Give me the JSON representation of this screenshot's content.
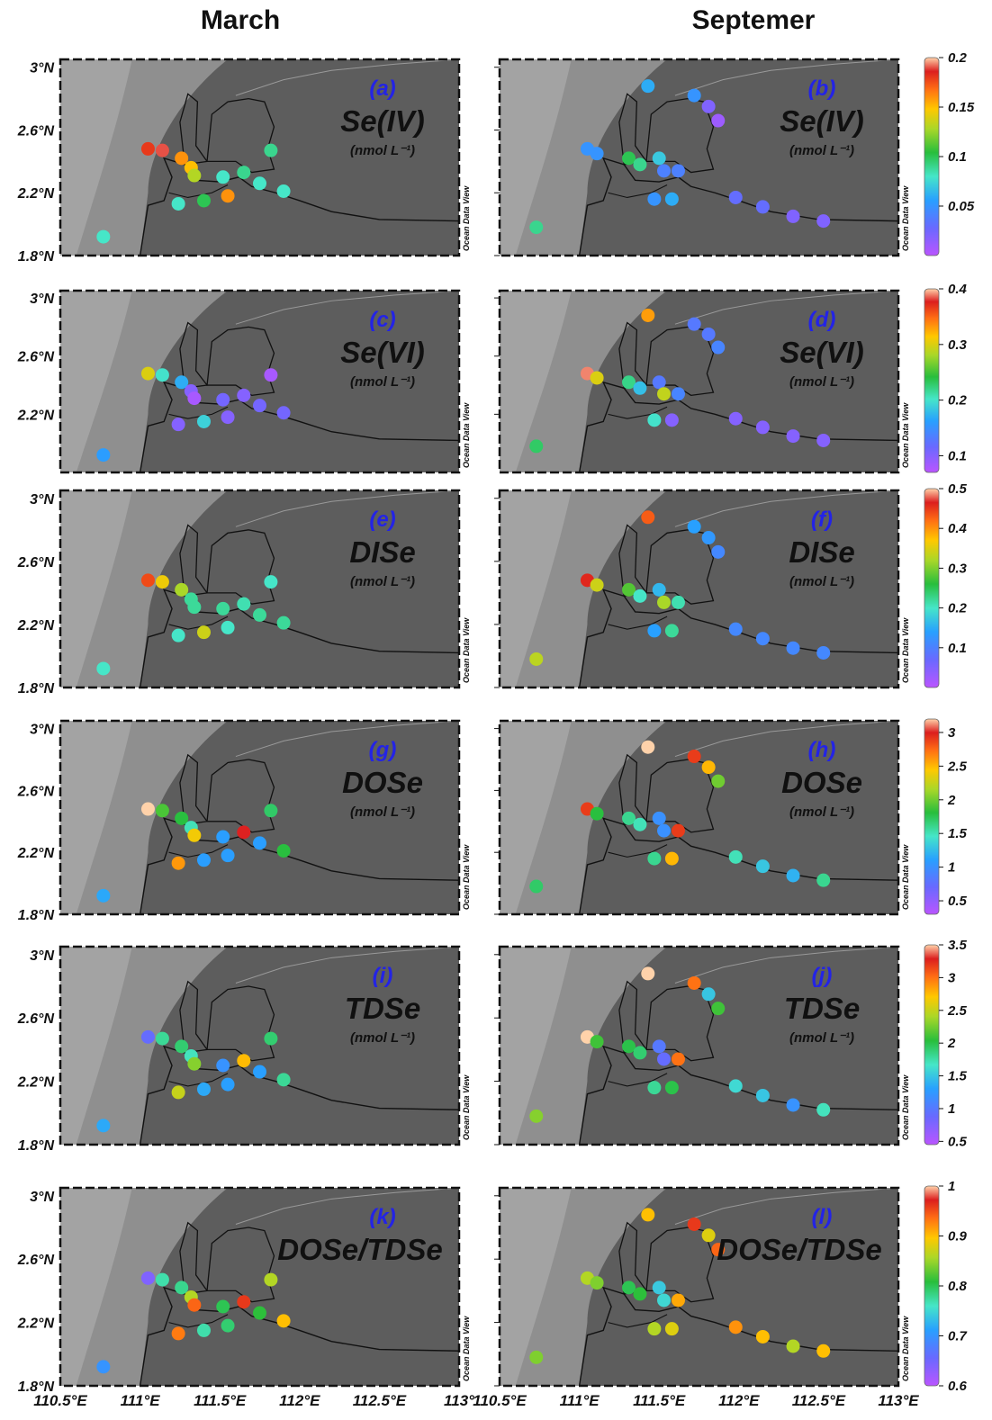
{
  "columns": {
    "left": "March",
    "right": "Septemer"
  },
  "watermark": "Ocean Data View",
  "latitude_ticks": [
    "3°N",
    "2.6°N",
    "2.2°N",
    "1.8°N"
  ],
  "longitude_ticks_left": [
    "110.5°E",
    "111°E",
    "111.5°E",
    "112°E",
    "112.5°E",
    "113°"
  ],
  "longitude_ticks_right": [
    "110.5°E",
    "111°E",
    "111.5°E",
    "112°E",
    "112.5°E",
    "113°E"
  ],
  "colors": {
    "land": "#5d5d5d",
    "shelf": "#8f8f8f",
    "letter": "#2323e6"
  },
  "stations": {
    "march": [
      [
        110.77,
        1.92
      ],
      [
        111.05,
        2.48
      ],
      [
        111.14,
        2.47
      ],
      [
        111.26,
        2.42
      ],
      [
        111.32,
        2.36
      ],
      [
        111.34,
        2.31
      ],
      [
        111.24,
        2.13
      ],
      [
        111.4,
        2.15
      ],
      [
        111.55,
        2.18
      ],
      [
        111.52,
        2.3
      ],
      [
        111.65,
        2.33
      ],
      [
        111.75,
        2.26
      ],
      [
        111.82,
        2.47
      ],
      [
        111.9,
        2.21
      ]
    ],
    "september": [
      [
        110.73,
        1.98
      ],
      [
        111.05,
        2.48
      ],
      [
        111.11,
        2.45
      ],
      [
        111.31,
        2.42
      ],
      [
        111.38,
        2.38
      ],
      [
        111.5,
        2.42
      ],
      [
        111.53,
        2.34
      ],
      [
        111.62,
        2.34
      ],
      [
        111.47,
        2.16
      ],
      [
        111.58,
        2.16
      ],
      [
        111.43,
        2.88
      ],
      [
        111.72,
        2.82
      ],
      [
        111.81,
        2.75
      ],
      [
        111.87,
        2.66
      ],
      [
        111.98,
        2.17
      ],
      [
        112.15,
        2.11
      ],
      [
        112.34,
        2.05
      ],
      [
        112.53,
        2.02
      ]
    ]
  },
  "panels": [
    {
      "letter": "(a)",
      "variable": "Se(IV)",
      "unit": "(nmol L⁻¹)",
      "colorbar": {
        "min": 0.0,
        "max": 0.2,
        "ticks": [
          "0.2",
          "0.15",
          "0.1",
          "0.05"
        ],
        "tick_values": [
          0.2,
          0.15,
          0.1,
          0.05
        ]
      },
      "values": [
        0.08,
        0.18,
        0.19,
        0.16,
        0.15,
        0.13,
        0.08,
        0.1,
        0.16,
        0.08,
        0.09,
        0.08,
        0.09,
        0.08
      ]
    },
    {
      "letter": "(b)",
      "variable": "Se(IV)",
      "unit": "(nmol L⁻¹)",
      "values": [
        0.09,
        0.05,
        0.05,
        0.1,
        0.09,
        0.07,
        0.04,
        0.04,
        0.05,
        0.06,
        0.06,
        0.05,
        0.02,
        0.01,
        0.03,
        0.03,
        0.02,
        0.02
      ]
    },
    {
      "letter": "(c)",
      "variable": "Se(VI)",
      "unit": "(nmol L⁻¹)",
      "colorbar": {
        "min": 0.07,
        "max": 0.4,
        "ticks": [
          "0.4",
          "0.3",
          "0.2",
          "0.1"
        ],
        "tick_values": [
          0.4,
          0.3,
          0.2,
          0.1
        ]
      },
      "values": [
        0.16,
        0.3,
        0.2,
        0.17,
        0.1,
        0.08,
        0.1,
        0.19,
        0.1,
        0.11,
        0.1,
        0.11,
        0.08,
        0.11
      ]
    },
    {
      "letter": "(d)",
      "variable": "Se(VI)",
      "unit": "(nmol L⁻¹)",
      "values": [
        0.23,
        0.39,
        0.3,
        0.22,
        0.18,
        0.13,
        0.29,
        0.14,
        0.2,
        0.1,
        0.33,
        0.13,
        0.13,
        0.14,
        0.1,
        0.1,
        0.1,
        0.1
      ]
    },
    {
      "letter": "(e)",
      "variable": "DISe",
      "unit": "(nmol L⁻¹)",
      "colorbar": {
        "min": 0.0,
        "max": 0.5,
        "ticks": [
          "0.5",
          "0.4",
          "0.3",
          "0.2",
          "0.1"
        ],
        "tick_values": [
          0.5,
          0.4,
          0.3,
          0.2,
          0.1
        ]
      },
      "values": [
        0.2,
        0.44,
        0.36,
        0.32,
        0.22,
        0.22,
        0.2,
        0.34,
        0.2,
        0.22,
        0.21,
        0.22,
        0.2,
        0.22
      ]
    },
    {
      "letter": "(f)",
      "variable": "DISe",
      "unit": "(nmol L⁻¹)",
      "values": [
        0.33,
        0.46,
        0.34,
        0.28,
        0.2,
        0.16,
        0.32,
        0.21,
        0.14,
        0.22,
        0.43,
        0.14,
        0.13,
        0.11,
        0.11,
        0.11,
        0.11,
        0.11
      ]
    },
    {
      "letter": "(g)",
      "variable": "DOSe",
      "unit": "(nmol L⁻¹)",
      "colorbar": {
        "min": 0.3,
        "max": 3.2,
        "ticks": [
          "3",
          "2.5",
          "2",
          "1.5",
          "1",
          "0.5"
        ],
        "tick_values": [
          3,
          2.5,
          2,
          1.5,
          1,
          0.5
        ]
      },
      "values": [
        1.15,
        3.3,
        1.9,
        1.8,
        1.5,
        2.4,
        2.6,
        1.1,
        1.1,
        1.1,
        3.0,
        1.1,
        1.7,
        1.8
      ]
    },
    {
      "letter": "(h)",
      "variable": "DOSe",
      "unit": "(nmol L⁻¹)",
      "values": [
        1.7,
        2.9,
        1.8,
        1.6,
        1.5,
        1.0,
        1.0,
        2.9,
        1.6,
        2.5,
        3.3,
        2.9,
        2.5,
        2.0,
        1.5,
        1.3,
        1.2,
        1.6
      ]
    },
    {
      "letter": "(i)",
      "variable": "TDSe",
      "unit": "(nmol L⁻¹)",
      "colorbar": {
        "min": 0.45,
        "max": 3.5,
        "ticks": [
          "3.5",
          "3",
          "2.5",
          "2",
          "1.5",
          "1",
          "0.5"
        ],
        "tick_values": [
          3.5,
          3,
          2.5,
          2,
          1.5,
          1,
          0.5
        ]
      },
      "values": [
        1.35,
        0.9,
        1.8,
        1.9,
        1.7,
        2.3,
        2.5,
        1.35,
        1.3,
        1.2,
        2.75,
        1.3,
        1.9,
        1.8
      ]
    },
    {
      "letter": "(j)",
      "variable": "TDSe",
      "unit": "(nmol L⁻¹)",
      "values": [
        2.3,
        3.6,
        2.1,
        2.0,
        1.9,
        1.0,
        0.9,
        3.0,
        1.8,
        2.0,
        3.7,
        3.0,
        1.5,
        2.1,
        1.6,
        1.5,
        1.2,
        1.7
      ]
    },
    {
      "letter": "(k)",
      "variable": "DOSe/TDSe",
      "unit": "",
      "colorbar": {
        "min": 0.6,
        "max": 1.0,
        "ticks": [
          "1",
          "0.9",
          "0.8",
          "0.7",
          "0.6"
        ],
        "tick_values": [
          1.0,
          0.9,
          0.8,
          0.7,
          0.6
        ]
      },
      "values": [
        0.7,
        0.64,
        0.77,
        0.78,
        0.86,
        0.94,
        0.93,
        0.77,
        0.79,
        0.8,
        0.96,
        0.81,
        0.86,
        0.9
      ]
    },
    {
      "letter": "(l)",
      "variable": "DOSe/TDSe",
      "unit": "",
      "values": [
        0.84,
        0.86,
        0.84,
        0.8,
        0.81,
        0.74,
        0.75,
        0.91,
        0.86,
        0.88,
        0.9,
        0.96,
        0.88,
        0.94,
        0.92,
        0.9,
        0.86,
        0.9
      ]
    }
  ]
}
